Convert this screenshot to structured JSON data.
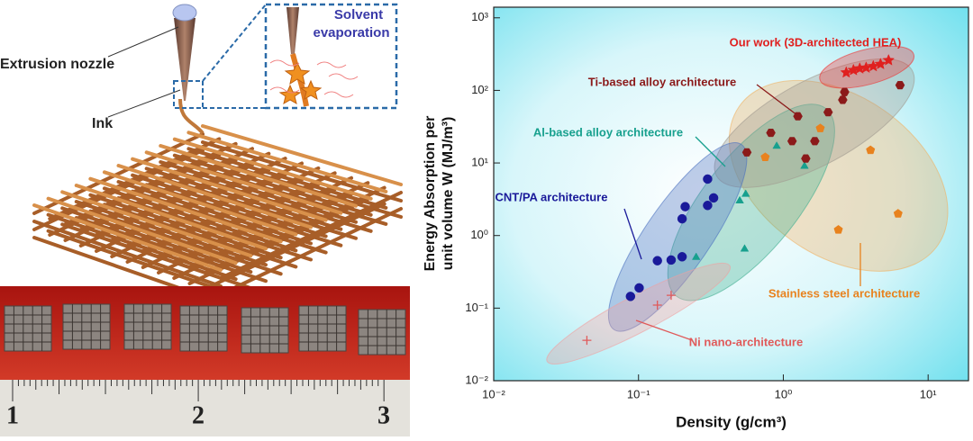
{
  "figure": {
    "nozzle_label": "Extrusion nozzle",
    "ink_label": "Ink",
    "zoom_label": [
      "Solvent",
      "evaporation"
    ],
    "ruler_numbers": [
      "1",
      "2",
      "3"
    ]
  },
  "chart_data": {
    "type": "scatter",
    "xlabel": "Density (g/cm³)",
    "ylabel": [
      "Energy Absorption per",
      "unit volume W (MJ/m³)"
    ],
    "xscale": "log",
    "yscale": "log",
    "xlim": [
      0.01,
      19
    ],
    "ylim": [
      0.01,
      1400
    ],
    "xticks": [
      {
        "value": 0.01,
        "label": "10⁻²"
      },
      {
        "value": 0.1,
        "label": "10⁻¹"
      },
      {
        "value": 1,
        "label": "10⁰"
      },
      {
        "value": 10,
        "label": "10¹"
      }
    ],
    "yticks": [
      {
        "value": 0.01,
        "label": "10⁻²"
      },
      {
        "value": 0.1,
        "label": "10⁻¹"
      },
      {
        "value": 1,
        "label": "10⁰"
      },
      {
        "value": 10,
        "label": "10¹"
      },
      {
        "value": 100,
        "label": "10²"
      },
      {
        "value": 1000,
        "label": "10³"
      }
    ],
    "series": [
      {
        "name": "Stainless steel architecture",
        "color": "#e8821e",
        "region_color": "#f0b060",
        "marker": "pentagon",
        "x": [
          2.4,
          6.2,
          0.75,
          4.0,
          1.8
        ],
        "y": [
          1.2,
          2.0,
          12,
          15,
          30
        ]
      },
      {
        "name": "Al-based alloy architecture",
        "color": "#17a08e",
        "region_color": "#3fae90",
        "marker": "triangle",
        "x": [
          0.54,
          0.5,
          0.55,
          1.4,
          0.9,
          0.25
        ],
        "y": [
          0.65,
          3.0,
          3.7,
          9,
          17,
          0.5
        ]
      },
      {
        "name": "Ti-based alloy architecture",
        "color": "#8b1a1a",
        "region_color": "#a09a90",
        "marker": "hexagon",
        "x": [
          2.65,
          1.26,
          0.82,
          0.56,
          1.15,
          2.04,
          2.57,
          6.4,
          1.43,
          1.65
        ],
        "y": [
          95,
          44,
          26,
          14,
          20,
          50,
          74,
          118,
          11.5,
          20
        ]
      },
      {
        "name": "CNT/PA architecture",
        "color": "#1a1a9a",
        "region_color": "#4a70c0",
        "marker": "circle",
        "x": [
          0.088,
          0.101,
          0.135,
          0.168,
          0.2,
          0.2,
          0.21,
          0.3,
          0.33,
          0.3
        ],
        "y": [
          0.145,
          0.19,
          0.45,
          0.46,
          0.51,
          1.7,
          2.5,
          2.6,
          3.3,
          6.0
        ]
      },
      {
        "name": "Ni nano-architecture",
        "color": "#e05a5a",
        "region_color": "#f0a0a0",
        "marker": "cross",
        "x": [
          0.044,
          0.135,
          0.168
        ],
        "y": [
          0.036,
          0.11,
          0.15
        ]
      },
      {
        "name": "Our work (3D-architected HEA)",
        "color": "#e0201f",
        "region_color": "#ee3030",
        "marker": "star",
        "x": [
          2.72,
          3.05,
          3.37,
          3.73,
          4.18,
          4.69,
          5.33
        ],
        "y": [
          176,
          190,
          200,
          205,
          215,
          230,
          260
        ]
      }
    ]
  }
}
